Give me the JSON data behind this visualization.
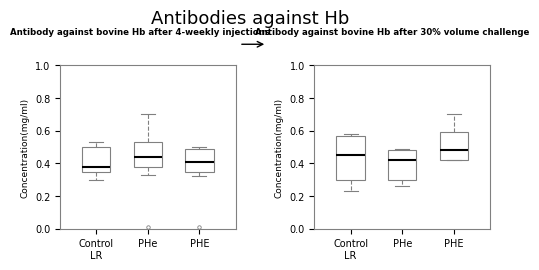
{
  "title": "Antibodies against Hb",
  "subtitle_left": "Antibody against bovine Hb after 4-weekly injections",
  "subtitle_right": "Antibody against bovine Hb after 30% volume challenge",
  "ylabel": "Concentration(mg/ml)",
  "xtick_labels": [
    [
      "Control\nLR",
      "PHe",
      "PHE"
    ],
    [
      "Control\nLR",
      "PHe",
      "PHE"
    ]
  ],
  "ylim": [
    0.0,
    1.0
  ],
  "yticks": [
    0.0,
    0.2,
    0.4,
    0.6,
    0.8,
    1.0
  ],
  "panel1": {
    "boxes": [
      {
        "q1": 0.35,
        "median": 0.38,
        "q3": 0.5,
        "whislo": 0.3,
        "whishi": 0.53,
        "fliers": []
      },
      {
        "q1": 0.38,
        "median": 0.44,
        "q3": 0.53,
        "whislo": 0.33,
        "whishi": 0.7,
        "fliers": [
          0.01
        ]
      },
      {
        "q1": 0.35,
        "median": 0.41,
        "q3": 0.49,
        "whislo": 0.32,
        "whishi": 0.5,
        "fliers": [
          0.01
        ]
      }
    ]
  },
  "panel2": {
    "boxes": [
      {
        "q1": 0.3,
        "median": 0.45,
        "q3": 0.57,
        "whislo": 0.23,
        "whishi": 0.58,
        "fliers": []
      },
      {
        "q1": 0.3,
        "median": 0.42,
        "q3": 0.48,
        "whislo": 0.26,
        "whishi": 0.49,
        "fliers": []
      },
      {
        "q1": 0.42,
        "median": 0.48,
        "q3": 0.59,
        "whislo": 0.42,
        "whishi": 0.7,
        "fliers": []
      }
    ]
  },
  "box_color": "#808080",
  "median_color": "#000000",
  "whisker_color": "#808080",
  "flier_color": "#808080",
  "background": "#ffffff",
  "title_fontsize": 13,
  "subtitle_fontsize": 6.2,
  "label_fontsize": 6.5,
  "tick_fontsize": 7
}
